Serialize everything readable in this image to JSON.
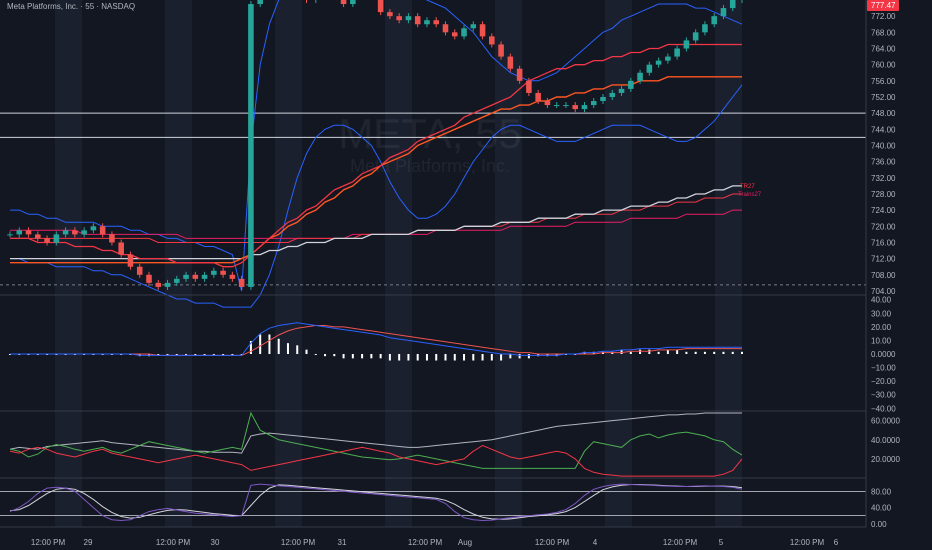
{
  "header": {
    "title": "Meta Platforms, Inc. · 55 · NASDAQ"
  },
  "watermark": {
    "ticker": "META, 55",
    "name": "Meta Platforms, Inc."
  },
  "colors": {
    "bg": "#131722",
    "up": "#26a69a",
    "down": "#ef5350",
    "price_tag": "#f23645"
  },
  "chart_data": [
    {
      "type": "candlestick",
      "title": "Meta Platforms, Inc. · 55 · NASDAQ",
      "x_ticks": [
        "12:00 PM",
        "29",
        "12:00 PM",
        "30",
        "12:00 PM",
        "31",
        "12:00 PM",
        "Aug",
        "12:00 PM",
        "4",
        "12:00 PM",
        "5",
        "12:00 PM",
        "6"
      ],
      "y_ticks": [
        704.0,
        708.0,
        712.0,
        716.0,
        720.0,
        724.0,
        728.0,
        732.0,
        736.0,
        740.0,
        744.0,
        748.0,
        752.0,
        756.0,
        760.0,
        764.0,
        768.0,
        772.0
      ],
      "ylim": [
        703,
        776
      ],
      "last_price": "777.47",
      "horizontal_levels": [
        748.0,
        742.0
      ],
      "dashed_level": 705.5,
      "ma_labels": [
        "TR27",
        "Trains27"
      ],
      "close": [
        718,
        719,
        718,
        717,
        716,
        718,
        719,
        718,
        719,
        720,
        718,
        716,
        713,
        710,
        708,
        706,
        705,
        706,
        707,
        708,
        707,
        708,
        709,
        708,
        707,
        705,
        775,
        778,
        779,
        780,
        777,
        778,
        776,
        779,
        778,
        777,
        775,
        779,
        780,
        778,
        773,
        772,
        771,
        772,
        770,
        771,
        770,
        768,
        767,
        769,
        770,
        767,
        765,
        762,
        759,
        756,
        753,
        751,
        750,
        750,
        750,
        749,
        750,
        751,
        752,
        753,
        754,
        756,
        758,
        760,
        761,
        762,
        764,
        766,
        768,
        770,
        772,
        774,
        776,
        777.47
      ],
      "bollinger_upper": [
        724,
        724,
        723,
        723,
        722,
        722,
        721,
        721,
        721,
        721,
        720,
        720,
        720,
        719,
        719,
        718,
        718,
        717,
        717,
        716,
        716,
        715,
        715,
        714,
        713,
        704,
        740,
        760,
        770,
        776,
        779,
        781,
        781,
        780,
        779,
        778,
        777,
        777,
        777,
        777,
        778,
        778,
        778,
        778,
        777,
        776,
        775,
        774,
        772,
        770,
        768,
        765,
        762,
        760,
        758,
        757,
        756,
        756,
        757,
        758,
        760,
        762,
        764,
        766,
        768,
        769,
        771,
        772,
        773,
        774,
        775,
        775,
        775,
        775,
        774,
        774,
        773,
        772,
        771,
        770
      ],
      "bollinger_lower": [
        712,
        712,
        711,
        711,
        711,
        710,
        710,
        710,
        710,
        709,
        709,
        708,
        708,
        707,
        706,
        705,
        704,
        703,
        702,
        702,
        701,
        701,
        701,
        700,
        700,
        700,
        700,
        703,
        708,
        715,
        724,
        732,
        738,
        742,
        744,
        745,
        745,
        744,
        742,
        740,
        736,
        731,
        727,
        724,
        722,
        722,
        723,
        725,
        728,
        732,
        736,
        739,
        742,
        744,
        745,
        745,
        744,
        743,
        742,
        741,
        741,
        741,
        742,
        743,
        744,
        745,
        745,
        745,
        745,
        744,
        743,
        742,
        741,
        741,
        742,
        744,
        746,
        749,
        752,
        755
      ],
      "ma_fast": [
        717,
        717,
        717,
        716,
        716,
        716,
        716,
        715,
        715,
        715,
        714,
        714,
        713,
        713,
        712,
        712,
        712,
        712,
        711,
        711,
        711,
        711,
        711,
        710,
        710,
        711,
        713,
        715,
        717,
        719,
        721,
        722,
        724,
        725,
        727,
        729,
        730,
        731,
        733,
        734,
        735,
        737,
        738,
        739,
        741,
        742,
        743,
        744,
        745,
        747,
        748,
        749,
        750,
        751,
        752,
        754,
        756,
        757,
        758,
        759,
        759,
        760,
        760,
        761,
        761,
        762,
        762,
        763,
        763,
        764,
        764,
        765,
        765,
        765,
        765,
        765,
        765,
        765,
        765,
        765
      ],
      "ma_slow_white": [
        712,
        712,
        712,
        712,
        712,
        712,
        712,
        712,
        712,
        712,
        712,
        712,
        712,
        712,
        712,
        712,
        712,
        712,
        712,
        712,
        712,
        712,
        712,
        712,
        712,
        712,
        713,
        713,
        714,
        714,
        715,
        715,
        716,
        716,
        716,
        717,
        717,
        717,
        717,
        718,
        718,
        718,
        718,
        718,
        719,
        719,
        719,
        719,
        719,
        720,
        720,
        720,
        720,
        721,
        721,
        721,
        721,
        722,
        722,
        722,
        722,
        723,
        723,
        723,
        724,
        724,
        724,
        725,
        725,
        725,
        726,
        726,
        727,
        727,
        728,
        728,
        729,
        729,
        730,
        730
      ],
      "ma_red": [
        717,
        717,
        717,
        717,
        717,
        717,
        717,
        717,
        717,
        717,
        717,
        717,
        717,
        717,
        717,
        717,
        716,
        716,
        716,
        716,
        716,
        716,
        716,
        716,
        716,
        716,
        716,
        716,
        716,
        716,
        716,
        717,
        717,
        717,
        717,
        717,
        717,
        717,
        718,
        718,
        718,
        718,
        718,
        718,
        719,
        719,
        719,
        719,
        719,
        720,
        720,
        720,
        720,
        720,
        721,
        721,
        721,
        721,
        722,
        722,
        722,
        722,
        723,
        723,
        723,
        723,
        724,
        724,
        724,
        725,
        725,
        725,
        726,
        726,
        726,
        727,
        727,
        727,
        728,
        728
      ],
      "ma_pink": [
        719,
        719,
        719,
        719,
        719,
        719,
        719,
        719,
        718,
        718,
        718,
        718,
        718,
        718,
        718,
        718,
        718,
        718,
        718,
        717,
        717,
        717,
        717,
        717,
        717,
        717,
        717,
        717,
        717,
        717,
        717,
        717,
        717,
        717,
        717,
        717,
        717,
        718,
        718,
        718,
        718,
        718,
        718,
        718,
        718,
        718,
        719,
        719,
        719,
        719,
        719,
        719,
        719,
        719,
        720,
        720,
        720,
        720,
        720,
        720,
        720,
        721,
        721,
        721,
        721,
        721,
        721,
        722,
        722,
        722,
        722,
        722,
        722,
        723,
        723,
        723,
        723,
        723,
        724,
        724
      ],
      "vwap_red": [
        711,
        711,
        711,
        711,
        711,
        711,
        711,
        711,
        711,
        711,
        711,
        711,
        711,
        711,
        711,
        711,
        711,
        711,
        711,
        711,
        711,
        711,
        711,
        711,
        711,
        712,
        713,
        715,
        717,
        718,
        720,
        721,
        723,
        724,
        726,
        727,
        729,
        730,
        732,
        733,
        735,
        736,
        737,
        738,
        740,
        741,
        742,
        743,
        744,
        745,
        746,
        747,
        748,
        749,
        749,
        750,
        750,
        751,
        751,
        752,
        752,
        753,
        753,
        754,
        754,
        755,
        755,
        755,
        756,
        756,
        756,
        757,
        757,
        757,
        757,
        757,
        757,
        757,
        757,
        757
      ]
    },
    {
      "type": "line",
      "title": "",
      "y_ticks": [
        40.0,
        30.0,
        20.0,
        10.0,
        0.0,
        -10.0,
        -20.0,
        -30.0,
        -40.0
      ],
      "y_tick_labels": [
        "40.00",
        "30.00",
        "20.00",
        "10.00",
        "0.0000",
        "−10.00",
        "−20.00",
        "−30.00",
        "−40.00"
      ],
      "ylim": [
        -42,
        42
      ],
      "macd": [
        0,
        0,
        0,
        0,
        0,
        0,
        0,
        0,
        0,
        0,
        0,
        0,
        0,
        0,
        -1,
        -1,
        -1,
        -1,
        -1,
        -1,
        -1,
        -1,
        -1,
        -1,
        -1,
        -1,
        8,
        15,
        19,
        21,
        22,
        23,
        22,
        21,
        20,
        19,
        18,
        17,
        16,
        15,
        14,
        12,
        11,
        10,
        9,
        8,
        7,
        6,
        5,
        4,
        3,
        2,
        1,
        0,
        0,
        -1,
        -1,
        -1,
        -1,
        -1,
        0,
        0,
        1,
        1,
        2,
        2,
        3,
        3,
        4,
        4,
        4,
        5,
        5,
        5,
        5,
        5,
        5,
        5,
        5,
        5
      ],
      "signal": [
        0,
        0,
        0,
        0,
        0,
        0,
        0,
        0,
        0,
        0,
        0,
        0,
        0,
        0,
        0,
        0,
        -1,
        -1,
        -1,
        -1,
        -1,
        -1,
        -1,
        -1,
        -1,
        -1,
        2,
        6,
        10,
        14,
        17,
        19,
        20,
        21,
        21,
        20,
        20,
        19,
        18,
        17,
        16,
        15,
        14,
        13,
        12,
        11,
        10,
        9,
        8,
        7,
        6,
        5,
        4,
        3,
        2,
        1,
        1,
        0,
        0,
        0,
        0,
        0,
        0,
        0,
        1,
        1,
        1,
        2,
        2,
        2,
        3,
        3,
        3,
        4,
        4,
        4,
        4,
        4,
        4,
        4
      ],
      "histogram": [
        0,
        0,
        0,
        0,
        0,
        0,
        0,
        0,
        0,
        0,
        0,
        0,
        0,
        0,
        -1,
        -1,
        0,
        0,
        0,
        0,
        0,
        0,
        0,
        0,
        0,
        0,
        6,
        9,
        9,
        7,
        5,
        4,
        2,
        0,
        -1,
        -1,
        -2,
        -2,
        -2,
        -2,
        -2,
        -3,
        -3,
        -3,
        -3,
        -3,
        -3,
        -3,
        -3,
        -3,
        -3,
        -3,
        -3,
        -3,
        -2,
        -2,
        -2,
        -1,
        -1,
        -1,
        0,
        0,
        1,
        1,
        1,
        1,
        2,
        1,
        2,
        2,
        1,
        2,
        2,
        1,
        1,
        1,
        1,
        1,
        1,
        1
      ]
    },
    {
      "type": "line",
      "title": "",
      "y_ticks": [
        60.0,
        40.0,
        20.0
      ],
      "y_tick_labels": [
        "60.0000",
        "40.0000",
        "20.0000"
      ],
      "ylim": [
        0,
        68
      ],
      "white": [
        30,
        32,
        31,
        30,
        33,
        34,
        35,
        36,
        37,
        38,
        39,
        37,
        36,
        35,
        34,
        33,
        32,
        31,
        30,
        29,
        28,
        28,
        27,
        27,
        27,
        26,
        44,
        46,
        47,
        46,
        45,
        44,
        43,
        42,
        41,
        40,
        39,
        38,
        37,
        36,
        35,
        34,
        33,
        32,
        32,
        33,
        34,
        35,
        36,
        37,
        38,
        39,
        40,
        42,
        44,
        46,
        48,
        50,
        52,
        54,
        55,
        56,
        57,
        58,
        59,
        60,
        61,
        62,
        63,
        64,
        65,
        66,
        66,
        67,
        67,
        68,
        68,
        68,
        68,
        68
      ],
      "green": [
        30,
        28,
        22,
        25,
        32,
        35,
        33,
        30,
        28,
        30,
        32,
        28,
        26,
        30,
        34,
        38,
        36,
        34,
        32,
        30,
        28,
        26,
        28,
        30,
        32,
        30,
        68,
        50,
        45,
        40,
        38,
        36,
        34,
        32,
        30,
        28,
        26,
        24,
        22,
        21,
        20,
        19,
        20,
        22,
        24,
        22,
        20,
        18,
        16,
        14,
        12,
        10,
        10,
        10,
        10,
        10,
        10,
        10,
        10,
        10,
        10,
        10,
        28,
        38,
        36,
        34,
        32,
        40,
        44,
        46,
        42,
        45,
        47,
        48,
        46,
        44,
        40,
        38,
        30,
        24
      ],
      "red": [
        28,
        26,
        30,
        32,
        30,
        26,
        24,
        22,
        25,
        28,
        30,
        26,
        24,
        22,
        20,
        18,
        16,
        18,
        20,
        22,
        24,
        22,
        20,
        18,
        16,
        14,
        8,
        10,
        12,
        14,
        16,
        18,
        20,
        22,
        24,
        26,
        28,
        30,
        32,
        30,
        28,
        26,
        22,
        20,
        18,
        16,
        14,
        16,
        18,
        20,
        28,
        34,
        30,
        26,
        22,
        20,
        22,
        24,
        26,
        28,
        26,
        20,
        10,
        6,
        4,
        3,
        2,
        2,
        2,
        2,
        2,
        2,
        2,
        2,
        2,
        2,
        2,
        4,
        8,
        20
      ]
    },
    {
      "type": "line",
      "title": "",
      "y_ticks": [
        80.0,
        40.0,
        0.0
      ],
      "y_tick_labels": [
        "80.00",
        "40.00",
        "0.00"
      ],
      "ylim": [
        -8,
        108
      ],
      "levels": [
        80,
        20
      ],
      "k": [
        30,
        40,
        55,
        75,
        88,
        90,
        88,
        80,
        60,
        40,
        20,
        10,
        8,
        10,
        20,
        30,
        35,
        38,
        34,
        30,
        26,
        24,
        22,
        20,
        18,
        20,
        95,
        98,
        96,
        94,
        92,
        90,
        88,
        86,
        84,
        82,
        80,
        78,
        76,
        74,
        72,
        70,
        68,
        66,
        64,
        62,
        60,
        50,
        30,
        15,
        10,
        8,
        9,
        12,
        15,
        18,
        20,
        22,
        24,
        28,
        35,
        50,
        70,
        85,
        92,
        96,
        98,
        97,
        96,
        95,
        94,
        93,
        92,
        92,
        93,
        94,
        93,
        92,
        90,
        85
      ],
      "d": [
        32,
        35,
        45,
        60,
        75,
        85,
        88,
        85,
        75,
        60,
        42,
        28,
        18,
        14,
        16,
        22,
        28,
        33,
        35,
        34,
        31,
        28,
        25,
        23,
        21,
        20,
        45,
        70,
        88,
        96,
        95,
        93,
        91,
        89,
        87,
        85,
        83,
        81,
        79,
        77,
        75,
        73,
        71,
        69,
        67,
        65,
        63,
        58,
        48,
        35,
        24,
        16,
        12,
        11,
        12,
        15,
        18,
        20,
        22,
        25,
        30,
        40,
        55,
        70,
        84,
        91,
        95,
        97,
        97,
        96,
        95,
        94,
        93,
        92,
        92,
        93,
        93,
        93,
        92,
        89
      ]
    }
  ]
}
